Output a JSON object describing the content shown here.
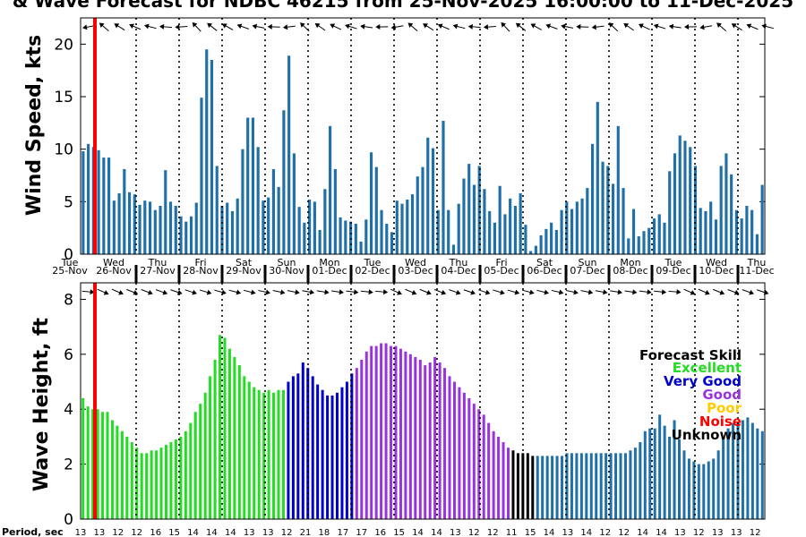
{
  "chart_data": [
    {
      "type": "bar",
      "title": "& Wave Forecast for NDBC 46215 from 25-Nov-2025 16:00:00 to 11-Dec-2025",
      "ylabel": "Wind Speed, kts",
      "ylim": [
        0,
        22.5
      ],
      "yticks": [
        "0",
        "5",
        "10",
        "15",
        "20"
      ],
      "bar_color": "#1f6fa8",
      "values": [
        9.8,
        10.5,
        10.2,
        9.9,
        9.2,
        9.2,
        5.1,
        5.8,
        8.1,
        5.9,
        5.7,
        4.7,
        5.1,
        5.0,
        4.2,
        4.6,
        8.0,
        5.0,
        4.6,
        3.6,
        3.1,
        3.6,
        4.9,
        14.9,
        19.5,
        18.5,
        8.4,
        4.6,
        4.9,
        4.1,
        5.3,
        10.0,
        13.0,
        13.0,
        10.2,
        5.1,
        5.4,
        8.1,
        6.4,
        13.7,
        18.9,
        9.6,
        4.5,
        3.0,
        5.2,
        5.0,
        2.3,
        6.2,
        12.2,
        8.1,
        3.5,
        3.2,
        3.1,
        2.9,
        1.2,
        3.3,
        9.7,
        8.3,
        4.2,
        2.9,
        2.1,
        5.1,
        4.8,
        5.2,
        5.7,
        7.4,
        8.3,
        11.1,
        10.1,
        4.2,
        12.7,
        4.2,
        0.9,
        4.8,
        7.2,
        8.6,
        6.6,
        8.4,
        6.2,
        4.1,
        3.0,
        6.5,
        3.8,
        5.3,
        4.6,
        5.8,
        2.8,
        0.3,
        0.8,
        1.8,
        2.4,
        3.0,
        2.3,
        4.2,
        5.0,
        4.3,
        5.0,
        5.3,
        6.3,
        10.5,
        14.5,
        8.8,
        8.4,
        6.7,
        12.2,
        6.3,
        1.5,
        4.3,
        1.7,
        2.2,
        2.5,
        3.4,
        3.8,
        3.0,
        7.9,
        9.6,
        11.3,
        10.8,
        10.2,
        8.4,
        4.4,
        4.1,
        5.0,
        3.3,
        8.4,
        9.6,
        7.6,
        4.2,
        3.4,
        4.6,
        4.2,
        1.9,
        6.6
      ],
      "dir_icons": "arrow-icon"
    },
    {
      "type": "bar",
      "ylabel": "Wave Height, ft",
      "ylim": [
        0,
        8.6
      ],
      "yticks": [
        "0",
        "2",
        "4",
        "6",
        "8"
      ],
      "values": [
        4.4,
        4.1,
        4.0,
        4.0,
        3.9,
        3.9,
        3.6,
        3.4,
        3.2,
        3.0,
        2.8,
        2.6,
        2.4,
        2.4,
        2.5,
        2.5,
        2.6,
        2.7,
        2.8,
        2.9,
        3.0,
        3.2,
        3.5,
        3.9,
        4.2,
        4.6,
        5.2,
        5.8,
        6.7,
        6.6,
        6.2,
        5.9,
        5.6,
        5.2,
        5.0,
        4.8,
        4.7,
        4.6,
        4.7,
        4.6,
        4.7,
        4.7,
        5.0,
        5.2,
        5.3,
        5.7,
        5.5,
        5.2,
        4.9,
        4.7,
        4.5,
        4.5,
        4.6,
        4.8,
        5.0,
        5.3,
        5.5,
        5.8,
        6.1,
        6.3,
        6.3,
        6.4,
        6.4,
        6.3,
        6.3,
        6.2,
        6.1,
        6.0,
        5.9,
        5.8,
        5.6,
        5.7,
        5.9,
        5.7,
        5.5,
        5.2,
        5.0,
        4.8,
        4.6,
        4.4,
        4.2,
        4.0,
        3.8,
        3.5,
        3.2,
        3.0,
        2.8,
        2.6,
        2.5,
        2.4,
        2.4,
        2.4,
        2.3,
        2.3,
        2.3,
        2.3,
        2.3,
        2.3,
        2.3,
        2.4,
        2.4,
        2.4,
        2.4,
        2.4,
        2.4,
        2.4,
        2.4,
        2.4,
        2.4,
        2.4,
        2.4,
        2.4,
        2.5,
        2.6,
        2.8,
        3.2,
        3.3,
        3.3,
        3.8,
        3.4,
        3.0,
        3.6,
        2.9,
        2.5,
        2.2,
        2.1,
        2.0,
        2.0,
        2.1,
        2.2,
        2.5,
        3.0,
        3.3,
        3.5,
        3.5,
        3.6,
        3.7,
        3.5,
        3.3,
        3.2
      ],
      "skill": [
        "Excellent",
        "Excellent",
        "Excellent",
        "Excellent",
        "Excellent",
        "Excellent",
        "Excellent",
        "Excellent",
        "Excellent",
        "Excellent",
        "Excellent",
        "Excellent",
        "Excellent",
        "Excellent",
        "Excellent",
        "Excellent",
        "Excellent",
        "Excellent",
        "Excellent",
        "Excellent",
        "Excellent",
        "Excellent",
        "Excellent",
        "Excellent",
        "Excellent",
        "Excellent",
        "Excellent",
        "Excellent",
        "Excellent",
        "Excellent",
        "Excellent",
        "Excellent",
        "Excellent",
        "Excellent",
        "Excellent",
        "Excellent",
        "Excellent",
        "Excellent",
        "Excellent",
        "Excellent",
        "Excellent",
        "Excellent",
        "Very Good",
        "Very Good",
        "Very Good",
        "Very Good",
        "Very Good",
        "Very Good",
        "Very Good",
        "Very Good",
        "Very Good",
        "Very Good",
        "Very Good",
        "Very Good",
        "Very Good",
        "Very Good",
        "Good",
        "Good",
        "Good",
        "Good",
        "Good",
        "Good",
        "Good",
        "Good",
        "Good",
        "Good",
        "Good",
        "Good",
        "Good",
        "Good",
        "Good",
        "Good",
        "Good",
        "Good",
        "Good",
        "Good",
        "Good",
        "Good",
        "Good",
        "Good",
        "Good",
        "Good",
        "Good",
        "Good",
        "Good",
        "Good",
        "Good",
        "Good",
        "Unknown",
        "Unknown",
        "Unknown",
        "Unknown",
        "Unknown",
        "Unknown",
        "Unknown",
        "Unknown",
        "Unknown",
        "Unknown",
        "Unknown",
        "Unknown",
        "Unknown",
        "Unknown",
        "Unknown",
        "Unknown",
        "Unknown",
        "Unknown",
        "Unknown",
        "Unknown",
        "Unknown",
        "Unknown",
        "Unknown",
        "Unknown",
        "Unknown",
        "Unknown",
        "Unknown",
        "Unknown",
        "Unknown",
        "Unknown",
        "Unknown",
        "Unknown",
        "Unknown",
        "Unknown",
        "Unknown",
        "Unknown",
        "Unknown",
        "Unknown",
        "Unknown",
        "Unknown",
        "Unknown",
        "Unknown",
        "Unknown",
        "Unknown",
        "Unknown",
        "Unknown",
        "Unknown",
        "Unknown",
        "Unknown",
        "Unknown",
        "Unknown",
        "Unknown",
        "Unknown",
        "Unknown",
        "Unknown",
        "Unknown",
        "Unknown"
      ],
      "legend": {
        "title": "Forecast Skill",
        "placement": "right",
        "items": [
          {
            "label": "Excellent",
            "color": "#22dd22"
          },
          {
            "label": "Very Good",
            "color": "#0000cc"
          },
          {
            "label": "Good",
            "color": "#9933dd"
          },
          {
            "label": "Poor",
            "color": "#ffcc00"
          },
          {
            "label": "Noise",
            "color": "#ff0000"
          },
          {
            "label": "Unknown",
            "color": "#000000"
          }
        ]
      },
      "unknown_bar_color": "#1f6fa8",
      "dir_icons": "arrow-icon"
    }
  ],
  "days": [
    {
      "dow": "Tue",
      "date": "25-Nov"
    },
    {
      "dow": "Wed",
      "date": "26-Nov"
    },
    {
      "dow": "Thu",
      "date": "27-Nov"
    },
    {
      "dow": "Fri",
      "date": "28-Nov"
    },
    {
      "dow": "Sat",
      "date": "29-Nov"
    },
    {
      "dow": "Sun",
      "date": "30-Nov"
    },
    {
      "dow": "Mon",
      "date": "01-Dec"
    },
    {
      "dow": "Tue",
      "date": "02-Dec"
    },
    {
      "dow": "Wed",
      "date": "03-Dec"
    },
    {
      "dow": "Thu",
      "date": "04-Dec"
    },
    {
      "dow": "Fri",
      "date": "05-Dec"
    },
    {
      "dow": "Sat",
      "date": "06-Dec"
    },
    {
      "dow": "Sun",
      "date": "07-Dec"
    },
    {
      "dow": "Mon",
      "date": "08-Dec"
    },
    {
      "dow": "Tue",
      "date": "09-Dec"
    },
    {
      "dow": "Wed",
      "date": "10-Dec"
    },
    {
      "dow": "Thu",
      "date": "11-Dec"
    }
  ],
  "now_line_color": "#ff0000",
  "period_label": "Period, sec",
  "periods": [
    "13",
    "13",
    "12",
    "12",
    "16",
    "15",
    "14",
    "14",
    "14",
    "13",
    "13",
    "12",
    "21",
    "18",
    "17",
    "17",
    "16",
    "15",
    "14",
    "14",
    "13",
    "12",
    "12",
    "11",
    "15",
    "14",
    "13",
    "14",
    "12",
    "12",
    "14",
    "14",
    "13",
    "12",
    "13",
    "13",
    "12"
  ]
}
